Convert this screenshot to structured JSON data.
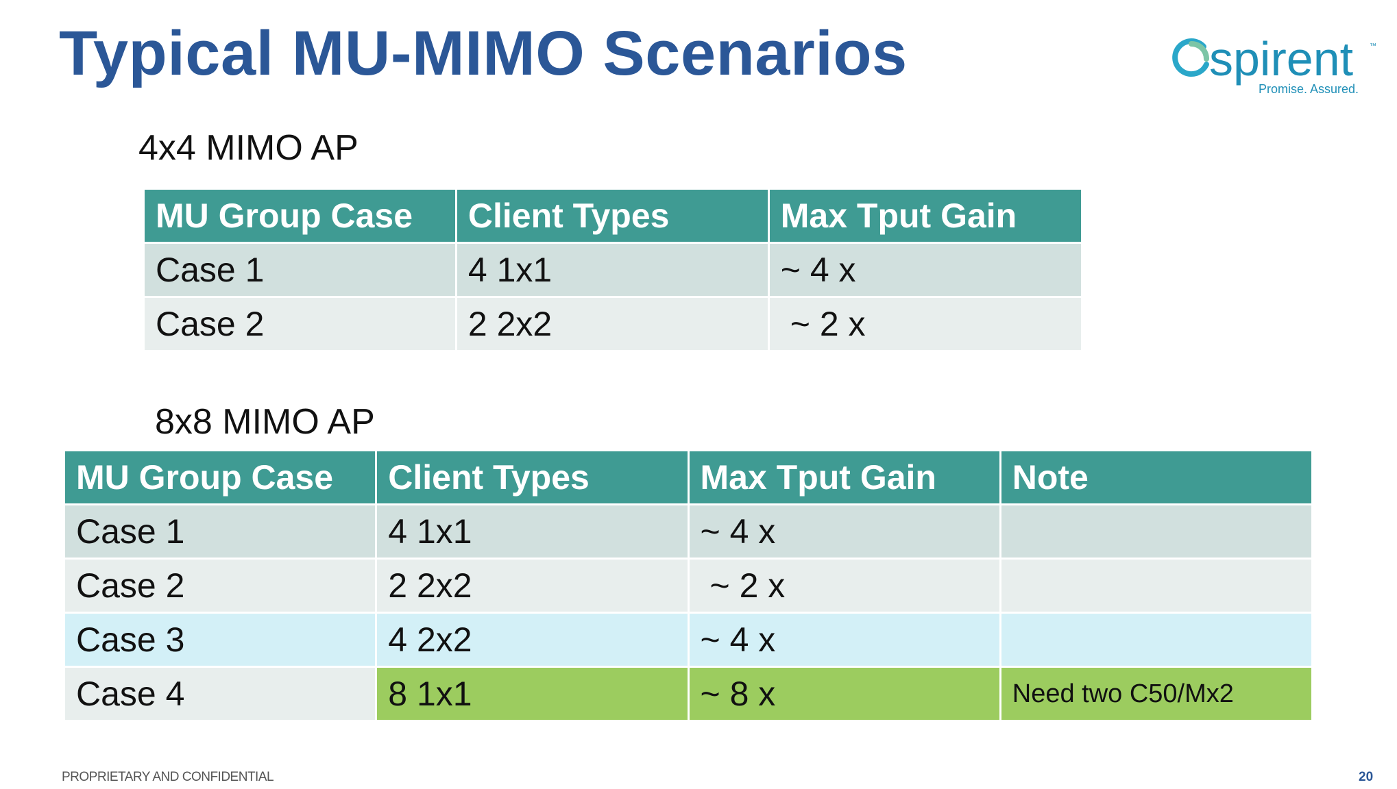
{
  "slide": {
    "title": "Typical MU-MIMO Scenarios",
    "brand": {
      "name": "spirent",
      "tagline": "Promise. Assured.",
      "tm": "™",
      "color": "#1f8fb7"
    },
    "footer": {
      "confidential": "PROPRIETARY AND CONFIDENTIAL",
      "page_number": "20"
    },
    "colors": {
      "title": "#2b5797",
      "header": "#3f9b93",
      "highlight": "#9ccc5f",
      "case3_row": "#d3f0f7"
    }
  },
  "table1": {
    "label": "4x4  MIMO AP",
    "headers": [
      "MU Group Case",
      "Client  Types",
      "Max Tput Gain"
    ],
    "rows": [
      [
        "Case 1",
        "4  1x1",
        "~ 4  x"
      ],
      [
        "Case 2",
        "2  2x2",
        "~ 2  x"
      ]
    ]
  },
  "table2": {
    "label": "8x8  MIMO AP",
    "headers": [
      "MU Group Case",
      "Client  Types",
      "Max Tput Gain",
      "Note"
    ],
    "rows": [
      [
        "Case 1",
        "4  1x1",
        "~ 4  x",
        ""
      ],
      [
        "Case 2",
        "2  2x2",
        "~ 2  x",
        ""
      ],
      [
        "Case 3",
        "4  2x2",
        "~ 4   x",
        ""
      ],
      [
        "Case 4",
        "8  1x1",
        "~ 8  x",
        "Need  two  C50/Mx2"
      ]
    ]
  }
}
